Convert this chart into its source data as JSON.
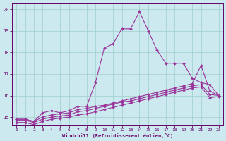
{
  "xlabel": "Windchill (Refroidissement éolien,°C)",
  "background_color": "#cde9f0",
  "grid_color": "#9ecfcc",
  "line_color": "#993399",
  "xlim": [
    -0.5,
    23.5
  ],
  "ylim": [
    14.6,
    20.3
  ],
  "yticks": [
    15,
    16,
    17,
    18,
    19,
    20
  ],
  "xticks": [
    0,
    1,
    2,
    3,
    4,
    5,
    6,
    7,
    8,
    9,
    10,
    11,
    12,
    13,
    14,
    15,
    16,
    17,
    18,
    19,
    20,
    21,
    22,
    23
  ],
  "lines": [
    [
      14.9,
      14.9,
      14.8,
      15.2,
      15.3,
      15.2,
      15.3,
      15.5,
      15.5,
      16.6,
      18.2,
      18.4,
      19.1,
      19.1,
      19.9,
      19.0,
      18.1,
      17.5,
      17.5,
      17.5,
      16.8,
      16.6,
      16.5,
      16.0
    ],
    [
      14.9,
      14.9,
      14.8,
      15.0,
      15.1,
      15.15,
      15.2,
      15.35,
      15.4,
      15.5,
      15.55,
      15.65,
      15.75,
      15.85,
      15.95,
      16.05,
      16.15,
      16.25,
      16.35,
      16.45,
      16.55,
      17.4,
      16.2,
      16.0
    ],
    [
      14.85,
      14.85,
      14.75,
      14.9,
      15.0,
      15.05,
      15.1,
      15.25,
      15.3,
      15.4,
      15.5,
      15.6,
      15.7,
      15.75,
      15.85,
      15.95,
      16.05,
      16.15,
      16.25,
      16.35,
      16.45,
      16.5,
      16.05,
      16.0
    ],
    [
      14.75,
      14.75,
      14.65,
      14.8,
      14.9,
      14.95,
      15.0,
      15.1,
      15.15,
      15.25,
      15.35,
      15.45,
      15.55,
      15.65,
      15.75,
      15.85,
      15.95,
      16.05,
      16.15,
      16.25,
      16.35,
      16.4,
      15.9,
      15.95
    ]
  ]
}
